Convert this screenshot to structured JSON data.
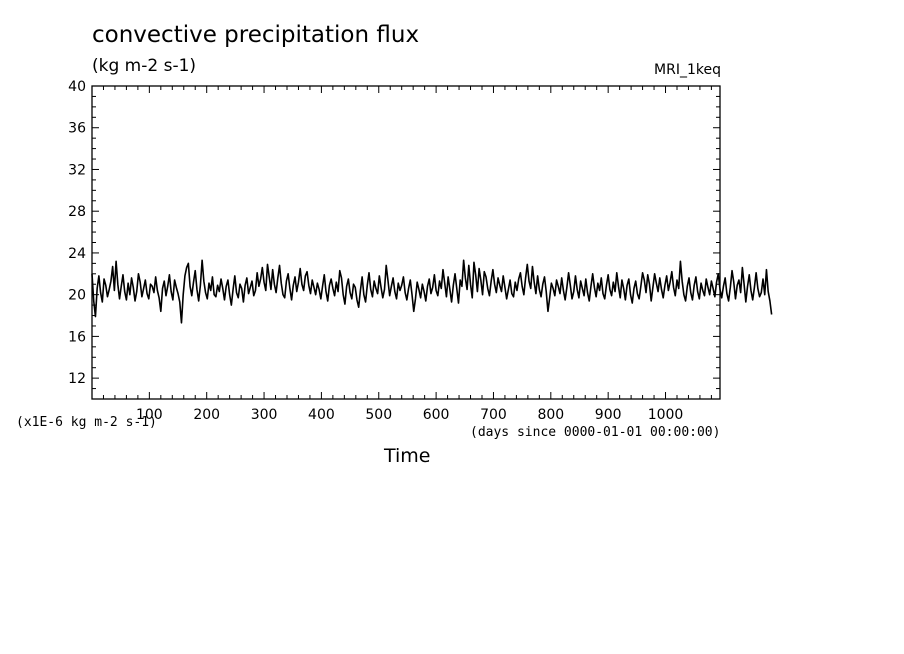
{
  "chart_data": {
    "type": "line",
    "title": "convective precipitation flux",
    "subtitle": "(kg m-2 s-1)",
    "model_label": "MRI_1keq",
    "ylabel_units": "(x1E-6 kg m-2 s-1)",
    "xlabel_units": "(days since 0000-01-01 00:00:00)",
    "xlabel": "Time",
    "xlim": [
      0,
      1095
    ],
    "ylim": [
      10,
      40
    ],
    "xticks": [
      100,
      200,
      300,
      400,
      500,
      600,
      700,
      800,
      900,
      1000
    ],
    "yticks": [
      12,
      16,
      20,
      24,
      28,
      32,
      36,
      40
    ],
    "grid": false,
    "line_color": "#000000",
    "series": [
      {
        "x_start": 0,
        "x_step": 3,
        "values": [
          22.0,
          19.4,
          17.9,
          20.6,
          21.8,
          20.2,
          19.3,
          21.5,
          20.9,
          19.8,
          20.5,
          21.3,
          22.7,
          20.4,
          23.2,
          21.0,
          19.6,
          20.8,
          21.9,
          20.3,
          19.5,
          21.1,
          20.0,
          21.6,
          20.7,
          19.4,
          20.3,
          22.0,
          21.2,
          19.8,
          20.6,
          21.4,
          20.1,
          19.6,
          21.0,
          20.8,
          20.2,
          21.7,
          20.4,
          19.7,
          18.4,
          20.6,
          21.3,
          19.9,
          20.8,
          21.9,
          20.3,
          19.5,
          21.4,
          20.7,
          20.1,
          19.3,
          17.3,
          20.0,
          21.8,
          22.6,
          23.0,
          20.8,
          19.9,
          21.2,
          22.3,
          20.5,
          19.4,
          20.9,
          23.3,
          21.3,
          20.2,
          19.6,
          21.1,
          20.4,
          21.7,
          20.0,
          19.8,
          20.9,
          20.3,
          21.5,
          20.6,
          19.5,
          20.8,
          21.4,
          20.0,
          19.0,
          20.5,
          21.8,
          20.2,
          19.7,
          21.0,
          20.6,
          19.3,
          20.9,
          21.6,
          20.1,
          20.7,
          21.3,
          19.9,
          20.4,
          22.1,
          20.8,
          21.5,
          22.6,
          21.2,
          20.4,
          22.9,
          21.7,
          20.5,
          22.4,
          21.0,
          20.2,
          21.6,
          22.8,
          21.1,
          20.0,
          19.7,
          21.3,
          22.0,
          20.6,
          19.5,
          20.9,
          21.7,
          20.3,
          21.2,
          22.5,
          21.0,
          20.4,
          21.8,
          22.2,
          20.9,
          20.1,
          21.4,
          20.7,
          20.0,
          21.1,
          20.5,
          19.6,
          20.8,
          21.9,
          20.3,
          19.4,
          20.9,
          21.5,
          20.6,
          19.9,
          21.2,
          20.3,
          22.3,
          21.6,
          20.0,
          19.1,
          20.8,
          21.5,
          20.2,
          19.6,
          21.0,
          20.7,
          19.5,
          18.8,
          20.4,
          21.7,
          20.0,
          19.3,
          20.9,
          22.1,
          20.5,
          19.8,
          21.3,
          20.6,
          20.1,
          21.8,
          20.7,
          19.7,
          20.5,
          22.8,
          21.4,
          19.9,
          20.8,
          21.6,
          20.3,
          19.6,
          21.1,
          20.4,
          20.9,
          21.7,
          20.2,
          19.5,
          20.6,
          21.4,
          20.0,
          18.4,
          19.6,
          21.2,
          20.5,
          19.7,
          21.0,
          20.3,
          19.4,
          20.8,
          21.5,
          20.1,
          20.7,
          21.9,
          20.4,
          19.9,
          21.3,
          20.6,
          22.4,
          21.1,
          19.8,
          21.7,
          20.5,
          19.3,
          20.9,
          22.0,
          20.6,
          19.2,
          21.4,
          20.8,
          23.3,
          21.6,
          20.5,
          22.8,
          21.0,
          19.7,
          23.1,
          21.9,
          20.3,
          22.5,
          21.4,
          20.0,
          22.2,
          21.7,
          20.6,
          19.9,
          21.3,
          22.4,
          21.0,
          20.2,
          21.6,
          20.9,
          20.3,
          21.8,
          20.7,
          19.6,
          20.5,
          21.4,
          20.1,
          19.8,
          21.2,
          20.4,
          21.5,
          22.1,
          20.8,
          20.0,
          21.6,
          22.9,
          21.3,
          20.6,
          22.7,
          21.2,
          20.1,
          21.8,
          20.5,
          19.8,
          21.0,
          21.7,
          20.3,
          18.4,
          19.7,
          21.1,
          20.6,
          19.9,
          21.4,
          20.8,
          20.1,
          21.6,
          20.4,
          19.5,
          20.7,
          22.1,
          20.9,
          19.6,
          20.3,
          21.8,
          20.5,
          19.7,
          21.3,
          20.6,
          19.9,
          21.5,
          20.2,
          19.4,
          20.8,
          22.0,
          20.7,
          19.8,
          21.1,
          20.4,
          21.6,
          20.1,
          19.6,
          20.9,
          21.9,
          20.5,
          19.9,
          21.2,
          20.3,
          22.1,
          20.8,
          19.7,
          21.4,
          20.6,
          19.5,
          20.9,
          21.5,
          20.0,
          19.2,
          20.6,
          21.3,
          20.1,
          19.6,
          20.8,
          22.1,
          21.4,
          20.2,
          21.9,
          21.0,
          19.4,
          20.7,
          22.0,
          21.1,
          20.3,
          21.6,
          20.5,
          19.7,
          20.9,
          21.8,
          20.4,
          21.2,
          22.2,
          20.7,
          19.9,
          21.4,
          20.6,
          23.2,
          21.3,
          20.0,
          19.4,
          20.8,
          21.6,
          20.2,
          19.5,
          20.9,
          21.7,
          20.3,
          19.6,
          21.1,
          20.4,
          19.9,
          21.5,
          20.7,
          20.0,
          21.3,
          20.6,
          19.8,
          21.2,
          22.0,
          20.5,
          19.7,
          20.8,
          21.6,
          20.1,
          19.4,
          20.7,
          22.3,
          21.2,
          19.6,
          20.9,
          21.4,
          20.2,
          22.6,
          21.0,
          19.3,
          20.8,
          21.9,
          20.4,
          19.5,
          20.7,
          22.1,
          20.6,
          19.8,
          20.2,
          21.5,
          20.0,
          22.4,
          20.3,
          19.4,
          18.1
        ]
      }
    ]
  }
}
